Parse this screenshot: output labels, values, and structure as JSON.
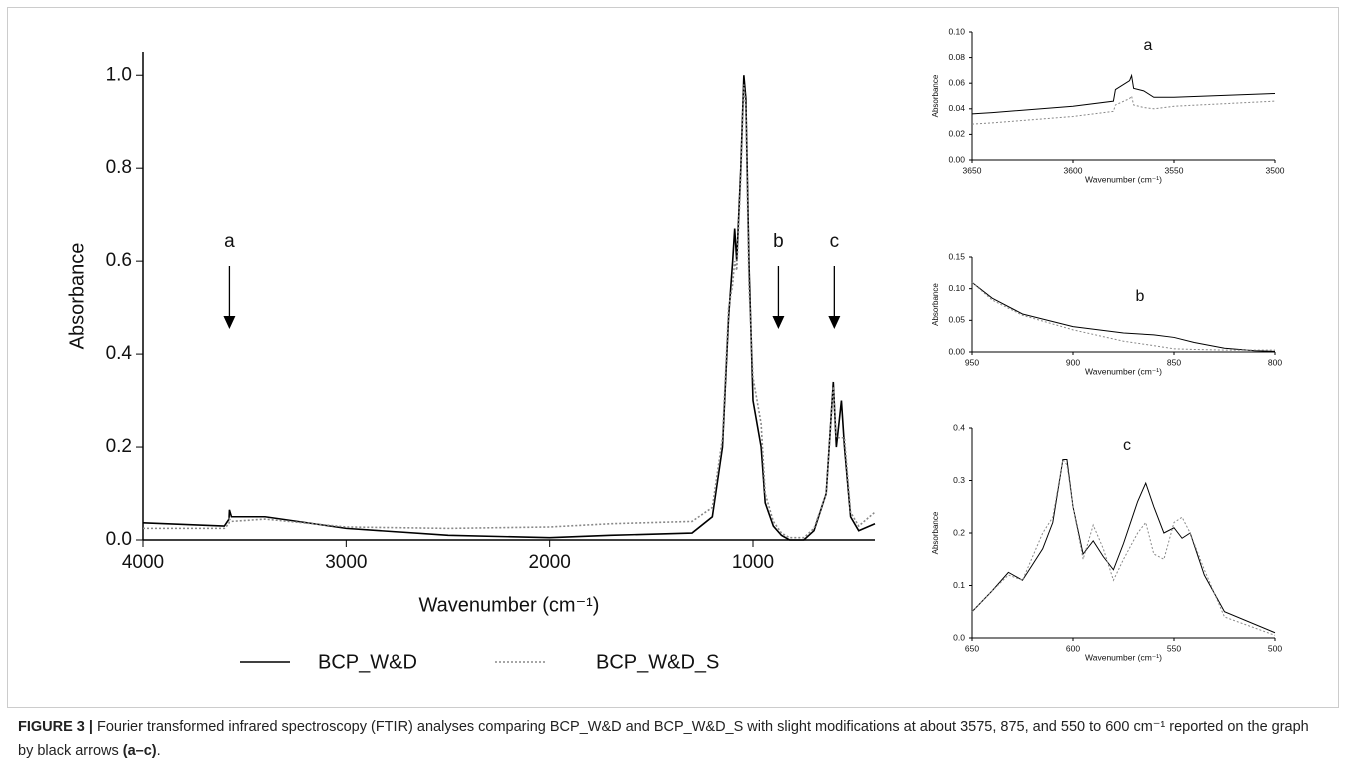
{
  "chart_data": [
    {
      "type": "line",
      "y_label": "Absorbance",
      "x_label": "Wavenumber (cm⁻¹)",
      "x": [
        4000,
        3600,
        3577,
        3575,
        3565,
        3400,
        3000,
        2500,
        2000,
        1700,
        1300,
        1200,
        1150,
        1120,
        1100,
        1090,
        1080,
        1060,
        1045,
        1035,
        1020,
        1000,
        960,
        940,
        900,
        860,
        820,
        750,
        700,
        640,
        605,
        590,
        565,
        550,
        520,
        480,
        400
      ],
      "series": [
        {
          "name": "BCP_W&D",
          "color": "#000000",
          "line_style": "solid",
          "values": [
            0.037,
            0.03,
            0.045,
            0.065,
            0.05,
            0.05,
            0.025,
            0.01,
            0.005,
            0.01,
            0.015,
            0.05,
            0.2,
            0.48,
            0.6,
            0.67,
            0.6,
            0.8,
            1.0,
            0.95,
            0.6,
            0.3,
            0.2,
            0.08,
            0.03,
            0.01,
            0.0,
            0.0,
            0.02,
            0.1,
            0.34,
            0.2,
            0.3,
            0.2,
            0.05,
            0.02,
            0.035
          ]
        },
        {
          "name": "BCP_W&D_S",
          "color": "#888888",
          "line_style": "dotted",
          "values": [
            0.025,
            0.025,
            0.035,
            0.045,
            0.04,
            0.045,
            0.028,
            0.025,
            0.028,
            0.035,
            0.04,
            0.07,
            0.22,
            0.5,
            0.55,
            0.6,
            0.58,
            0.78,
            0.98,
            0.93,
            0.55,
            0.35,
            0.25,
            0.1,
            0.04,
            0.015,
            0.005,
            0.005,
            0.025,
            0.1,
            0.33,
            0.22,
            0.22,
            0.22,
            0.06,
            0.03,
            0.06
          ]
        }
      ],
      "xlim": [
        4000,
        400
      ],
      "xticks": [
        4000,
        3000,
        2000,
        1000
      ],
      "ylim": [
        0,
        1.05
      ],
      "yticks": [
        {
          "value": 0,
          "label": "0.0"
        },
        0.2,
        0.4,
        0.6,
        0.8,
        {
          "value": 1,
          "label": "1.0"
        }
      ],
      "annotations": [
        {
          "text": "a",
          "x": 3575
        },
        {
          "text": "b",
          "x": 875
        },
        {
          "text": "c",
          "x": 600
        }
      ]
    },
    {
      "type": "line",
      "title": "a",
      "y_label": "Absorbance",
      "x_label": "Wavenumber (cm⁻¹)",
      "x": [
        3650,
        3640,
        3600,
        3580,
        3579,
        3572,
        3571,
        3570,
        3565,
        3560,
        3550,
        3500
      ],
      "series": [
        {
          "name": "BCP_W&D",
          "color": "#000000",
          "line_style": "solid",
          "values": [
            0.036,
            0.037,
            0.042,
            0.046,
            0.055,
            0.062,
            0.066,
            0.056,
            0.054,
            0.049,
            0.049,
            0.052
          ]
        },
        {
          "name": "BCP_W&D_S",
          "color": "#888888",
          "line_style": "dotted",
          "values": [
            0.028,
            0.029,
            0.034,
            0.038,
            0.043,
            0.048,
            0.05,
            0.043,
            0.041,
            0.04,
            0.042,
            0.046
          ]
        }
      ],
      "xlim": [
        3650,
        3500
      ],
      "xticks": [
        3650,
        3600,
        3550,
        3500
      ],
      "ylim": [
        0,
        0.1
      ],
      "yticks": [
        {
          "value": 0,
          "label": "0.00"
        },
        {
          "value": 0.02,
          "label": "0.02"
        },
        {
          "value": 0.04,
          "label": "0.04"
        },
        {
          "value": 0.06,
          "label": "0.06"
        },
        {
          "value": 0.08,
          "label": "0.08"
        },
        {
          "value": 0.1,
          "label": "0.10"
        }
      ]
    },
    {
      "type": "line",
      "title": "b",
      "y_label": "Absorbance",
      "x_label": "Wavenumber (cm⁻¹)",
      "x": [
        950,
        940,
        925,
        900,
        875,
        860,
        850,
        840,
        825,
        810,
        800
      ],
      "series": [
        {
          "name": "BCP_W&D",
          "color": "#000000",
          "line_style": "solid",
          "values": [
            0.11,
            0.085,
            0.06,
            0.04,
            0.03,
            0.027,
            0.023,
            0.015,
            0.006,
            0.002,
            0.001
          ]
        },
        {
          "name": "BCP_W&D_S",
          "color": "#888888",
          "line_style": "dotted",
          "values": [
            0.11,
            0.082,
            0.058,
            0.035,
            0.017,
            0.01,
            0.005,
            0.004,
            0.003,
            0.003,
            0.003
          ]
        }
      ],
      "xlim": [
        950,
        800
      ],
      "xticks": [
        950,
        900,
        850,
        800
      ],
      "ylim": [
        0,
        0.15
      ],
      "yticks": [
        {
          "value": 0,
          "label": "0.00"
        },
        {
          "value": 0.05,
          "label": "0.05"
        },
        {
          "value": 0.1,
          "label": "0.10"
        },
        {
          "value": 0.15,
          "label": "0.15"
        }
      ]
    },
    {
      "type": "line",
      "title": "c",
      "y_label": "Absorbance",
      "x_label": "Wavenumber (cm⁻¹)",
      "x": [
        650,
        640,
        632,
        625,
        615,
        610,
        605,
        603,
        600,
        595,
        590,
        585,
        580,
        575,
        568,
        564,
        560,
        555,
        550,
        546,
        542,
        535,
        525,
        500
      ],
      "series": [
        {
          "name": "BCP_W&D",
          "color": "#000000",
          "line_style": "solid",
          "values": [
            0.05,
            0.09,
            0.125,
            0.11,
            0.17,
            0.22,
            0.34,
            0.34,
            0.25,
            0.16,
            0.185,
            0.155,
            0.13,
            0.18,
            0.26,
            0.295,
            0.25,
            0.2,
            0.21,
            0.19,
            0.2,
            0.12,
            0.05,
            0.01
          ]
        },
        {
          "name": "BCP_W&D_S",
          "color": "#888888",
          "line_style": "dotted",
          "values": [
            0.05,
            0.09,
            0.12,
            0.11,
            0.2,
            0.23,
            0.34,
            0.33,
            0.25,
            0.15,
            0.215,
            0.17,
            0.11,
            0.15,
            0.2,
            0.22,
            0.16,
            0.15,
            0.22,
            0.23,
            0.2,
            0.13,
            0.04,
            0.005
          ]
        }
      ],
      "xlim": [
        650,
        500
      ],
      "xticks": [
        650,
        600,
        550,
        500
      ],
      "ylim": [
        0,
        0.4
      ],
      "yticks": [
        {
          "value": 0,
          "label": "0.0"
        },
        0.1,
        0.2,
        0.3,
        0.4
      ]
    }
  ],
  "caption": {
    "label": "FIGURE 3 |",
    "text": "Fourier transformed infrared spectroscopy (FTIR) analyses comparing BCP_W&D and BCP_W&D_S with slight modifications at about 3575, 875, and 550 to 600 cm⁻¹ reported on the graph by black arrows",
    "ref": "(a–c)",
    "end": "."
  }
}
